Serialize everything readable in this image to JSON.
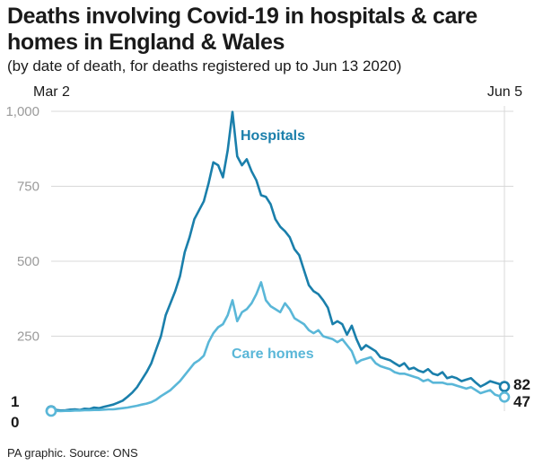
{
  "title": "Deaths involving Covid-19 in hospitals & care homes in England & Wales",
  "subtitle": "(by date of death, for deaths registered up to Jun 13 2020)",
  "source": "PA graphic. Source: ONS",
  "colors": {
    "hospitals": "#1a7fab",
    "care_homes": "#5ab7d8",
    "grid": "#d8d8d8"
  },
  "chart_data": {
    "type": "line",
    "x_start_label": "Mar 2",
    "x_end_label": "Jun 5",
    "ylim": [
      0,
      1000
    ],
    "yticks": [
      {
        "value": 250,
        "label": "250"
      },
      {
        "value": 500,
        "label": "500"
      },
      {
        "value": 750,
        "label": "750"
      },
      {
        "value": 1000,
        "label": "1,000"
      }
    ],
    "grid": true,
    "start_labels": {
      "hospitals": "1",
      "care_homes": "0"
    },
    "end_labels": {
      "hospitals": "82",
      "care_homes": "47"
    },
    "series": [
      {
        "name": "Hospitals",
        "key": "hospitals",
        "values": [
          1,
          4,
          2,
          3,
          5,
          6,
          4,
          8,
          7,
          12,
          10,
          14,
          18,
          22,
          28,
          35,
          48,
          62,
          80,
          105,
          130,
          160,
          205,
          250,
          320,
          360,
          400,
          450,
          530,
          580,
          640,
          670,
          700,
          760,
          830,
          820,
          780,
          870,
          998,
          850,
          820,
          840,
          800,
          770,
          720,
          715,
          690,
          640,
          615,
          600,
          580,
          540,
          520,
          470,
          420,
          400,
          390,
          370,
          345,
          290,
          300,
          290,
          255,
          285,
          240,
          205,
          220,
          210,
          200,
          180,
          175,
          170,
          160,
          150,
          160,
          140,
          145,
          135,
          130,
          140,
          125,
          120,
          130,
          110,
          115,
          110,
          100,
          105,
          110,
          95,
          82,
          90,
          100,
          95,
          90,
          82
        ]
      },
      {
        "name": "Care homes",
        "key": "care_homes",
        "values": [
          0,
          1,
          0,
          1,
          1,
          2,
          2,
          3,
          3,
          4,
          4,
          5,
          6,
          6,
          8,
          10,
          12,
          15,
          18,
          22,
          25,
          30,
          38,
          50,
          60,
          70,
          85,
          100,
          120,
          140,
          160,
          170,
          185,
          230,
          260,
          280,
          290,
          320,
          370,
          300,
          330,
          340,
          360,
          390,
          430,
          370,
          350,
          340,
          330,
          360,
          340,
          310,
          300,
          290,
          270,
          260,
          270,
          250,
          245,
          240,
          230,
          240,
          220,
          200,
          160,
          170,
          175,
          180,
          160,
          150,
          145,
          140,
          130,
          125,
          125,
          120,
          115,
          110,
          100,
          105,
          95,
          95,
          95,
          90,
          90,
          85,
          80,
          75,
          80,
          70,
          60,
          65,
          70,
          55,
          50,
          47
        ]
      }
    ]
  }
}
